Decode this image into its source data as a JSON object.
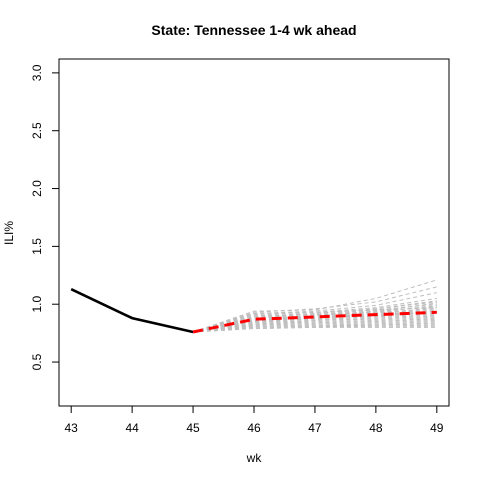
{
  "chart_data": {
    "type": "line",
    "title": "State: Tennessee 1-4 wk ahead",
    "xlabel": "wk",
    "ylabel": "ILI%",
    "x_ticks": [
      "43",
      "44",
      "45",
      "46",
      "47",
      "48",
      "49"
    ],
    "y_ticks": [
      "0.5",
      "1.0",
      "1.5",
      "2.0",
      "2.5",
      "3.0"
    ],
    "xlim": [
      42.8,
      49.2
    ],
    "ylim": [
      0.12,
      3.12
    ],
    "grid": false,
    "legend": "none",
    "observed": {
      "color": "#000000",
      "x": [
        43,
        44,
        45
      ],
      "y": [
        1.13,
        0.88,
        0.76
      ]
    },
    "forecast_mean": {
      "color": "#ff0000",
      "x": [
        45,
        46,
        47,
        48,
        49
      ],
      "y": [
        0.76,
        0.87,
        0.89,
        0.91,
        0.93
      ]
    },
    "simulations": {
      "color": "#bebebe",
      "x": [
        45,
        46,
        47,
        48,
        49
      ],
      "trajectories": [
        [
          0.76,
          0.94,
          0.95,
          1.05,
          1.21
        ],
        [
          0.76,
          0.93,
          0.96,
          1.02,
          1.15
        ],
        [
          0.76,
          0.92,
          0.94,
          0.99,
          1.1
        ],
        [
          0.76,
          0.91,
          0.93,
          0.97,
          1.05
        ],
        [
          0.76,
          0.9,
          0.92,
          0.96,
          1.02
        ],
        [
          0.76,
          0.89,
          0.91,
          0.95,
          1.0
        ],
        [
          0.76,
          0.88,
          0.9,
          0.94,
          0.98
        ],
        [
          0.76,
          0.87,
          0.9,
          0.93,
          0.96
        ],
        [
          0.76,
          0.86,
          0.89,
          0.92,
          0.95
        ],
        [
          0.76,
          0.86,
          0.88,
          0.91,
          0.94
        ],
        [
          0.76,
          0.85,
          0.88,
          0.9,
          0.93
        ],
        [
          0.76,
          0.85,
          0.87,
          0.89,
          0.92
        ],
        [
          0.76,
          0.84,
          0.86,
          0.88,
          0.91
        ],
        [
          0.76,
          0.84,
          0.86,
          0.87,
          0.9
        ],
        [
          0.76,
          0.83,
          0.85,
          0.86,
          0.89
        ],
        [
          0.76,
          0.83,
          0.84,
          0.85,
          0.88
        ],
        [
          0.76,
          0.82,
          0.84,
          0.85,
          0.87
        ],
        [
          0.76,
          0.82,
          0.83,
          0.84,
          0.86
        ],
        [
          0.76,
          0.81,
          0.82,
          0.83,
          0.85
        ],
        [
          0.76,
          0.81,
          0.82,
          0.82,
          0.84
        ],
        [
          0.76,
          0.8,
          0.81,
          0.82,
          0.83
        ],
        [
          0.76,
          0.8,
          0.81,
          0.81,
          0.82
        ],
        [
          0.76,
          0.79,
          0.8,
          0.81,
          0.81
        ],
        [
          0.76,
          0.79,
          0.8,
          0.8,
          0.8
        ],
        [
          0.76,
          0.92,
          0.93,
          0.95,
          0.97
        ],
        [
          0.76,
          0.9,
          0.91,
          0.93,
          0.99
        ],
        [
          0.76,
          0.88,
          0.92,
          0.96,
          1.03
        ],
        [
          0.76,
          0.86,
          0.9,
          0.94,
          1.01
        ],
        [
          0.76,
          0.84,
          0.88,
          0.92,
          0.97
        ],
        [
          0.76,
          0.82,
          0.86,
          0.9,
          0.94
        ]
      ]
    }
  }
}
